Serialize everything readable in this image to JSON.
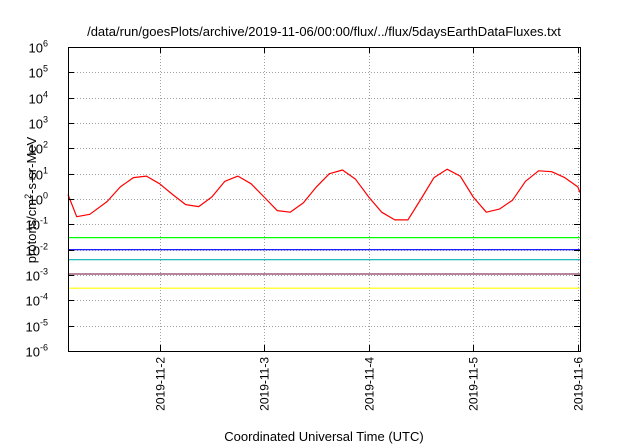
{
  "chart_data": {
    "type": "line",
    "title": "/data/run/goesPlots/archive/2019-11-06/00:00/flux/../flux/5daysEarthDataFluxes.txt",
    "xlabel": "Coordinated Universal Time (UTC)",
    "ylabel": {
      "prefix": "protons/cm",
      "sup": "2",
      "suffix": "-s-sr-MeV"
    },
    "yscale": "log",
    "ylim": [
      1e-06,
      1000000.0
    ],
    "xlim": [
      "2019-11-01T03:00",
      "2019-11-06T00:30"
    ],
    "grid": true,
    "y_ticks": [
      {
        "base": "10",
        "exp": "-6",
        "value": 1e-06
      },
      {
        "base": "10",
        "exp": "-5",
        "value": 1e-05
      },
      {
        "base": "10",
        "exp": "-4",
        "value": 0.0001
      },
      {
        "base": "10",
        "exp": "-3",
        "value": 0.001
      },
      {
        "base": "10",
        "exp": "-2",
        "value": 0.01
      },
      {
        "base": "10",
        "exp": "-1",
        "value": 0.1
      },
      {
        "base": "10",
        "exp": "0",
        "value": 1
      },
      {
        "base": "10",
        "exp": "1",
        "value": 10
      },
      {
        "base": "10",
        "exp": "2",
        "value": 100
      },
      {
        "base": "10",
        "exp": "3",
        "value": 1000
      },
      {
        "base": "10",
        "exp": "4",
        "value": 10000
      },
      {
        "base": "10",
        "exp": "5",
        "value": 100000
      },
      {
        "base": "10",
        "exp": "6",
        "value": 1000000
      }
    ],
    "x_ticks": [
      {
        "label": "2019-11-2",
        "x": "2019-11-02T00:00"
      },
      {
        "label": "2019-11-3",
        "x": "2019-11-03T00:00"
      },
      {
        "label": "2019-11-4",
        "x": "2019-11-04T00:00"
      },
      {
        "label": "2019-11-5",
        "x": "2019-11-05T00:00"
      },
      {
        "label": "2019-11-6",
        "x": "2019-11-06T00:00"
      }
    ],
    "series": [
      {
        "color": "#ff0000",
        "x": [
          "2019-11-01T03:00",
          "2019-11-01T05:00",
          "2019-11-01T08:00",
          "2019-11-01T12:00",
          "2019-11-01T15:00",
          "2019-11-01T18:00",
          "2019-11-01T21:00",
          "2019-11-02T00:00",
          "2019-11-02T03:00",
          "2019-11-02T06:00",
          "2019-11-02T09:00",
          "2019-11-02T12:00",
          "2019-11-02T15:00",
          "2019-11-02T18:00",
          "2019-11-02T21:00",
          "2019-11-03T00:00",
          "2019-11-03T03:00",
          "2019-11-03T06:00",
          "2019-11-03T09:00",
          "2019-11-03T12:00",
          "2019-11-03T15:00",
          "2019-11-03T18:00",
          "2019-11-03T21:00",
          "2019-11-04T00:00",
          "2019-11-04T03:00",
          "2019-11-04T06:00",
          "2019-11-04T09:00",
          "2019-11-04T12:00",
          "2019-11-04T15:00",
          "2019-11-04T18:00",
          "2019-11-04T21:00",
          "2019-11-05T00:00",
          "2019-11-05T03:00",
          "2019-11-05T06:00",
          "2019-11-05T09:00",
          "2019-11-05T12:00",
          "2019-11-05T15:00",
          "2019-11-05T18:00",
          "2019-11-05T21:00",
          "2019-11-06T00:00",
          "2019-11-06T00:30"
        ],
        "y": [
          1.5,
          0.2,
          0.25,
          0.8,
          3,
          7,
          8,
          4,
          1.5,
          0.6,
          0.5,
          1.2,
          5,
          8,
          4,
          1.2,
          0.35,
          0.3,
          0.7,
          3,
          10,
          14,
          6,
          1.2,
          0.3,
          0.15,
          0.15,
          1,
          7,
          15,
          8,
          1.2,
          0.3,
          0.4,
          0.9,
          5,
          13,
          12,
          7,
          3,
          1.8
        ]
      },
      {
        "color": "#00ff00",
        "x": [
          "2019-11-01T03:00",
          "2019-11-02T00:00",
          "2019-11-03T00:00",
          "2019-11-04T00:00",
          "2019-11-05T00:00",
          "2019-11-06T00:30"
        ],
        "y": [
          0.03,
          0.03,
          0.03,
          0.03,
          0.03,
          0.03
        ]
      },
      {
        "color": "#00b0b0",
        "x": [
          "2019-11-01T03:00",
          "2019-11-02T00:00",
          "2019-11-03T00:00",
          "2019-11-04T00:00",
          "2019-11-05T00:00",
          "2019-11-06T00:30"
        ],
        "y": [
          0.004,
          0.004,
          0.004,
          0.004,
          0.004,
          0.004
        ]
      },
      {
        "color": "#0000ff",
        "x": [
          "2019-11-01T03:00",
          "2019-11-02T00:00",
          "2019-11-03T00:00",
          "2019-11-04T00:00",
          "2019-11-05T00:00",
          "2019-11-06T00:30"
        ],
        "y": [
          0.01,
          0.01,
          0.01,
          0.01,
          0.01,
          0.01
        ]
      },
      {
        "color": "#8b3a62",
        "x": [
          "2019-11-01T03:00",
          "2019-11-02T00:00",
          "2019-11-03T00:00",
          "2019-11-04T00:00",
          "2019-11-05T00:00",
          "2019-11-06T00:30"
        ],
        "y": [
          0.0011,
          0.0011,
          0.0011,
          0.0011,
          0.0011,
          0.0011
        ]
      },
      {
        "color": "#ffff00",
        "x": [
          "2019-11-01T03:00",
          "2019-11-02T00:00",
          "2019-11-03T00:00",
          "2019-11-04T00:00",
          "2019-11-05T00:00",
          "2019-11-06T00:30"
        ],
        "y": [
          0.0003,
          0.0003,
          0.0003,
          0.0003,
          0.0003,
          0.0003
        ]
      }
    ]
  }
}
